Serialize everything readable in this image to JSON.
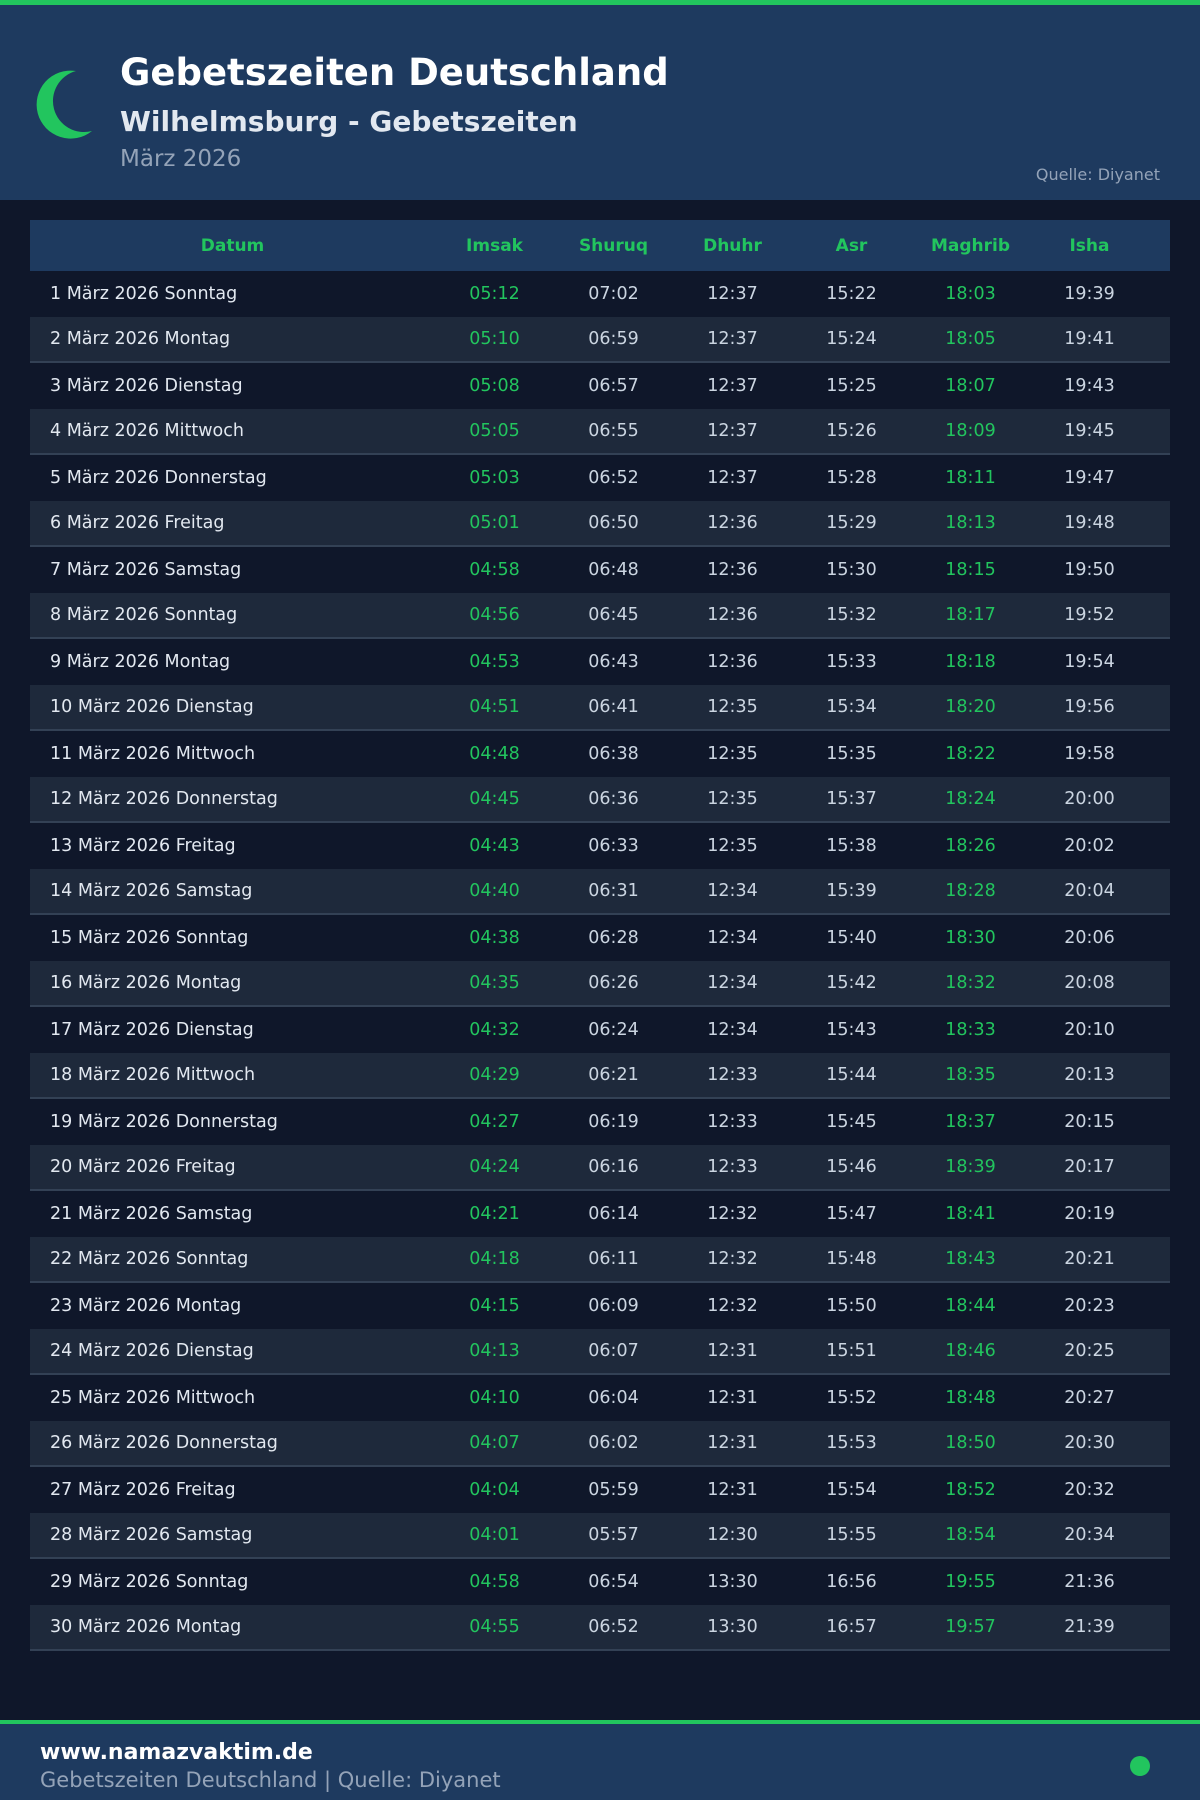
{
  "header": {
    "title": "Gebetszeiten Deutschland",
    "subtitle": "Wilhelmsburg - Gebetszeiten",
    "month": "März 2026",
    "source": "Quelle: Diyanet",
    "logo_icon": "crescent-moon-icon"
  },
  "colors": {
    "accent": "#22c55e",
    "header_bg": "#1e3a5f",
    "body_bg": "#0f172a",
    "alt_row": "#1e293b"
  },
  "table": {
    "columns": [
      "Datum",
      "Imsak",
      "Shuruq",
      "Dhuhr",
      "Asr",
      "Maghrib",
      "Isha"
    ],
    "rows": [
      [
        "1 März 2026 Sonntag",
        "05:12",
        "07:02",
        "12:37",
        "15:22",
        "18:03",
        "19:39"
      ],
      [
        "2 März 2026 Montag",
        "05:10",
        "06:59",
        "12:37",
        "15:24",
        "18:05",
        "19:41"
      ],
      [
        "3 März 2026 Dienstag",
        "05:08",
        "06:57",
        "12:37",
        "15:25",
        "18:07",
        "19:43"
      ],
      [
        "4 März 2026 Mittwoch",
        "05:05",
        "06:55",
        "12:37",
        "15:26",
        "18:09",
        "19:45"
      ],
      [
        "5 März 2026 Donnerstag",
        "05:03",
        "06:52",
        "12:37",
        "15:28",
        "18:11",
        "19:47"
      ],
      [
        "6 März 2026 Freitag",
        "05:01",
        "06:50",
        "12:36",
        "15:29",
        "18:13",
        "19:48"
      ],
      [
        "7 März 2026 Samstag",
        "04:58",
        "06:48",
        "12:36",
        "15:30",
        "18:15",
        "19:50"
      ],
      [
        "8 März 2026 Sonntag",
        "04:56",
        "06:45",
        "12:36",
        "15:32",
        "18:17",
        "19:52"
      ],
      [
        "9 März 2026 Montag",
        "04:53",
        "06:43",
        "12:36",
        "15:33",
        "18:18",
        "19:54"
      ],
      [
        "10 März 2026 Dienstag",
        "04:51",
        "06:41",
        "12:35",
        "15:34",
        "18:20",
        "19:56"
      ],
      [
        "11 März 2026 Mittwoch",
        "04:48",
        "06:38",
        "12:35",
        "15:35",
        "18:22",
        "19:58"
      ],
      [
        "12 März 2026 Donnerstag",
        "04:45",
        "06:36",
        "12:35",
        "15:37",
        "18:24",
        "20:00"
      ],
      [
        "13 März 2026 Freitag",
        "04:43",
        "06:33",
        "12:35",
        "15:38",
        "18:26",
        "20:02"
      ],
      [
        "14 März 2026 Samstag",
        "04:40",
        "06:31",
        "12:34",
        "15:39",
        "18:28",
        "20:04"
      ],
      [
        "15 März 2026 Sonntag",
        "04:38",
        "06:28",
        "12:34",
        "15:40",
        "18:30",
        "20:06"
      ],
      [
        "16 März 2026 Montag",
        "04:35",
        "06:26",
        "12:34",
        "15:42",
        "18:32",
        "20:08"
      ],
      [
        "17 März 2026 Dienstag",
        "04:32",
        "06:24",
        "12:34",
        "15:43",
        "18:33",
        "20:10"
      ],
      [
        "18 März 2026 Mittwoch",
        "04:29",
        "06:21",
        "12:33",
        "15:44",
        "18:35",
        "20:13"
      ],
      [
        "19 März 2026 Donnerstag",
        "04:27",
        "06:19",
        "12:33",
        "15:45",
        "18:37",
        "20:15"
      ],
      [
        "20 März 2026 Freitag",
        "04:24",
        "06:16",
        "12:33",
        "15:46",
        "18:39",
        "20:17"
      ],
      [
        "21 März 2026 Samstag",
        "04:21",
        "06:14",
        "12:32",
        "15:47",
        "18:41",
        "20:19"
      ],
      [
        "22 März 2026 Sonntag",
        "04:18",
        "06:11",
        "12:32",
        "15:48",
        "18:43",
        "20:21"
      ],
      [
        "23 März 2026 Montag",
        "04:15",
        "06:09",
        "12:32",
        "15:50",
        "18:44",
        "20:23"
      ],
      [
        "24 März 2026 Dienstag",
        "04:13",
        "06:07",
        "12:31",
        "15:51",
        "18:46",
        "20:25"
      ],
      [
        "25 März 2026 Mittwoch",
        "04:10",
        "06:04",
        "12:31",
        "15:52",
        "18:48",
        "20:27"
      ],
      [
        "26 März 2026 Donnerstag",
        "04:07",
        "06:02",
        "12:31",
        "15:53",
        "18:50",
        "20:30"
      ],
      [
        "27 März 2026 Freitag",
        "04:04",
        "05:59",
        "12:31",
        "15:54",
        "18:52",
        "20:32"
      ],
      [
        "28 März 2026 Samstag",
        "04:01",
        "05:57",
        "12:30",
        "15:55",
        "18:54",
        "20:34"
      ],
      [
        "29 März 2026 Sonntag",
        "04:58",
        "06:54",
        "13:30",
        "16:56",
        "19:55",
        "21:36"
      ],
      [
        "30 März 2026 Montag",
        "04:55",
        "06:52",
        "13:30",
        "16:57",
        "19:57",
        "21:39"
      ]
    ]
  },
  "footer": {
    "site": "www.namazvaktim.de",
    "tagline": "Gebetszeiten Deutschland | Quelle: Diyanet"
  }
}
